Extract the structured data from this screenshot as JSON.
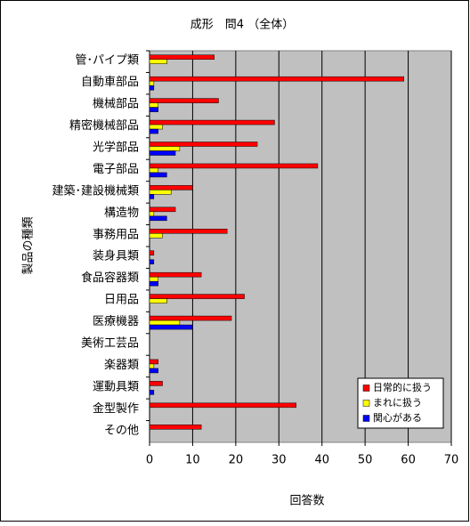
{
  "chart_data": {
    "type": "hbar",
    "title": "成形　問4 （全体）",
    "xlabel": "回答数",
    "ylabel": "製品の種類",
    "categories": [
      "管･パイプ類",
      "自動車部品",
      "機械部品",
      "精密機械部品",
      "光学部品",
      "電子部品",
      "建築･建設機械類",
      "構造物",
      "事務用品",
      "装身具類",
      "食品容器類",
      "日用品",
      "医療機器",
      "美術工芸品",
      "楽器類",
      "運動具類",
      "金型製作",
      "その他"
    ],
    "series": [
      {
        "name": "日常的に扱う",
        "color": "#ff0000",
        "values": [
          15,
          59,
          16,
          29,
          25,
          39,
          10,
          6,
          18,
          1,
          12,
          22,
          19,
          0,
          2,
          3,
          34,
          12
        ]
      },
      {
        "name": "まれに扱う",
        "color": "#ffff00",
        "values": [
          4,
          1,
          2,
          3,
          7,
          2,
          5,
          1,
          3,
          0,
          2,
          4,
          7,
          0,
          1,
          0,
          0,
          0
        ]
      },
      {
        "name": "関心がある",
        "color": "#0000ff",
        "values": [
          0,
          1,
          2,
          2,
          6,
          4,
          1,
          4,
          0,
          1,
          2,
          0,
          10,
          0,
          2,
          1,
          0,
          0
        ]
      }
    ],
    "xlim": [
      0,
      70
    ],
    "xticks": [
      0,
      10,
      20,
      30,
      40,
      50,
      60,
      70
    ],
    "grid": true,
    "legend": "lower right"
  }
}
